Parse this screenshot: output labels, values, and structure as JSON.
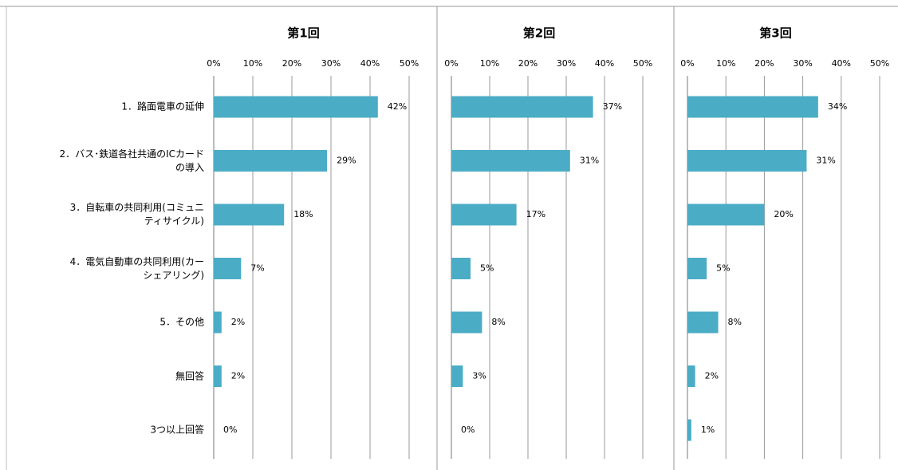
{
  "chart_data": [
    {
      "type": "bar",
      "orientation": "horizontal",
      "title": "第1回",
      "categories": [
        "1．路面電車の延伸",
        "2．バス･鉄道各社共通のICカード\nの導入",
        "3．自転車の共同利用(コミュニ\nティサイクル)",
        "4．電気自動車の共同利用(カー\nシェアリング)",
        "5．その他",
        "無回答",
        "3つ以上回答"
      ],
      "values": [
        42,
        29,
        18,
        7,
        2,
        2,
        0
      ],
      "value_labels": [
        "42%",
        "29%",
        "18%",
        "7%",
        "2%",
        "2%",
        "0%"
      ],
      "color": "#4bacc6",
      "xlim": [
        0,
        50
      ],
      "xticks": [
        {
          "value": 0,
          "label": "0%"
        },
        {
          "value": 10,
          "label": "10%"
        },
        {
          "value": 20,
          "label": "20%"
        },
        {
          "value": 30,
          "label": "30%"
        },
        {
          "value": 40,
          "label": "40%"
        },
        {
          "value": 50,
          "label": "50%"
        }
      ],
      "grid": true
    },
    {
      "type": "bar",
      "orientation": "horizontal",
      "title": "第2回",
      "values": [
        37,
        31,
        17,
        5,
        8,
        3,
        0
      ],
      "value_labels": [
        "37%",
        "31%",
        "17%",
        "5%",
        "8%",
        "3%",
        "0%"
      ],
      "color": "#4bacc6",
      "xlim": [
        0,
        50
      ],
      "xticks": [
        {
          "value": 0,
          "label": "0%"
        },
        {
          "value": 10,
          "label": "10%"
        },
        {
          "value": 20,
          "label": "20%"
        },
        {
          "value": 30,
          "label": "30%"
        },
        {
          "value": 40,
          "label": "40%"
        },
        {
          "value": 50,
          "label": "50%"
        }
      ],
      "grid": true
    },
    {
      "type": "bar",
      "orientation": "horizontal",
      "title": "第3回",
      "values": [
        34,
        31,
        20,
        5,
        8,
        2,
        1
      ],
      "value_labels": [
        "34%",
        "31%",
        "20%",
        "5%",
        "8%",
        "2%",
        "1%"
      ],
      "color": "#4bacc6",
      "xlim": [
        0,
        50
      ],
      "xticks": [
        {
          "value": 0,
          "label": "0%"
        },
        {
          "value": 10,
          "label": "10%"
        },
        {
          "value": 20,
          "label": "20%"
        },
        {
          "value": 30,
          "label": "30%"
        },
        {
          "value": 40,
          "label": "40%"
        },
        {
          "value": 50,
          "label": "50%"
        }
      ],
      "grid": true
    }
  ]
}
